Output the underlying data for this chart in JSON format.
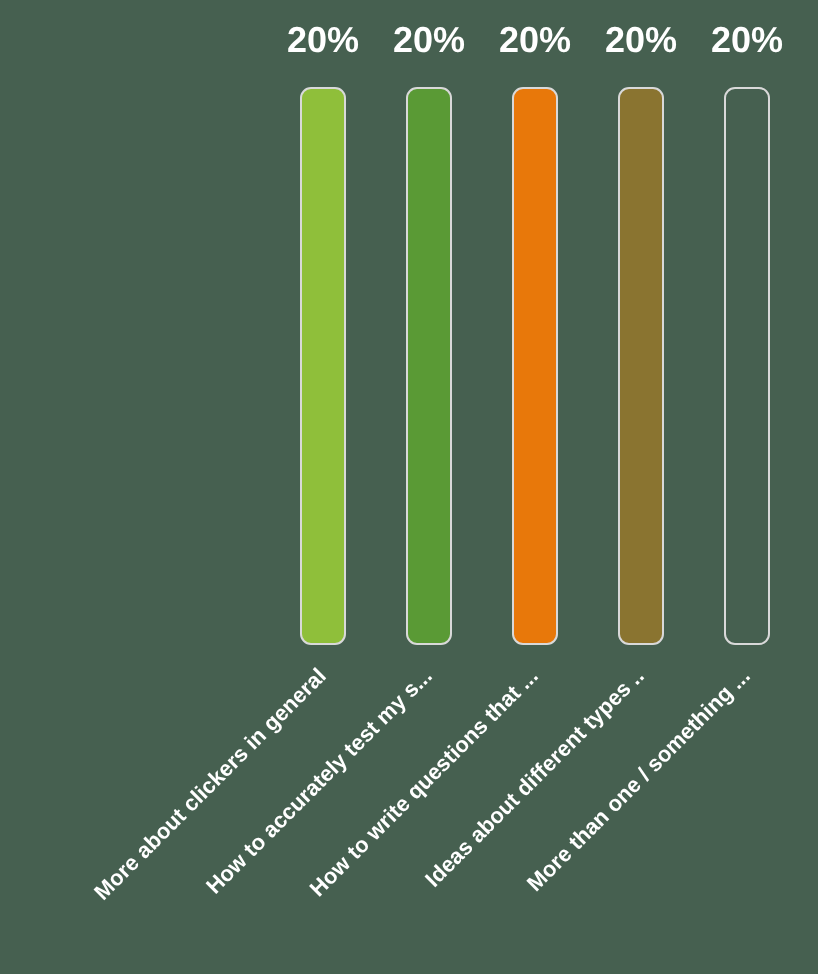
{
  "chart_data": {
    "type": "bar",
    "categories": [
      "More about clickers in general",
      "How to accurately test my s...",
      "How to write questions that ...",
      "Ideas about different types ..",
      "More than one / something ..."
    ],
    "values": [
      20,
      20,
      20,
      20,
      20
    ],
    "value_labels": [
      "20%",
      "20%",
      "20%",
      "20%",
      "20%"
    ],
    "colors": [
      "#8fbf3a",
      "#5a9a35",
      "#e8780a",
      "#8a7430",
      "#466050"
    ]
  }
}
